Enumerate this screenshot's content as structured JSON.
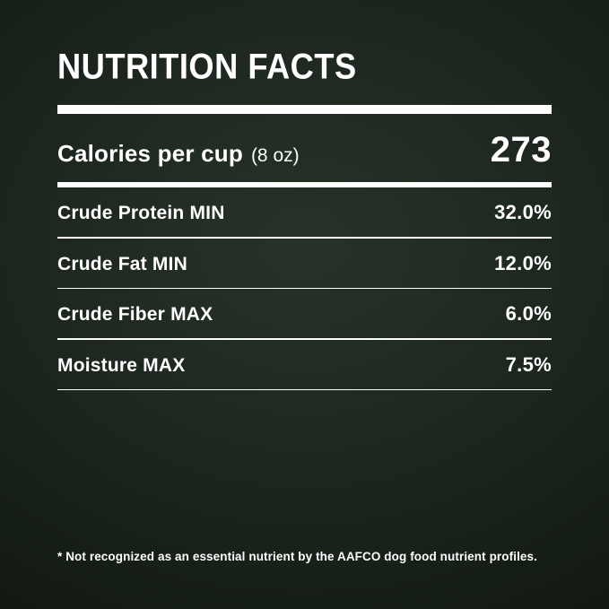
{
  "title": "NUTRITION FACTS",
  "calories": {
    "label": "Calories per cup",
    "unit": "(8 oz)",
    "value": "273"
  },
  "nutrients": [
    {
      "label": "Crude Protein MIN",
      "value": "32.0%"
    },
    {
      "label": "Crude Fat MIN",
      "value": "12.0%"
    },
    {
      "label": "Crude Fiber MAX",
      "value": "6.0%"
    },
    {
      "label": "Moisture MAX",
      "value": "7.5%"
    }
  ],
  "footnote": "* Not recognized as an essential nutrient by the AAFCO dog food nutrient profiles.",
  "colors": {
    "background_center": "#273329",
    "background_edge": "#070b08",
    "text": "#ffffff",
    "divider": "#ffffff"
  }
}
